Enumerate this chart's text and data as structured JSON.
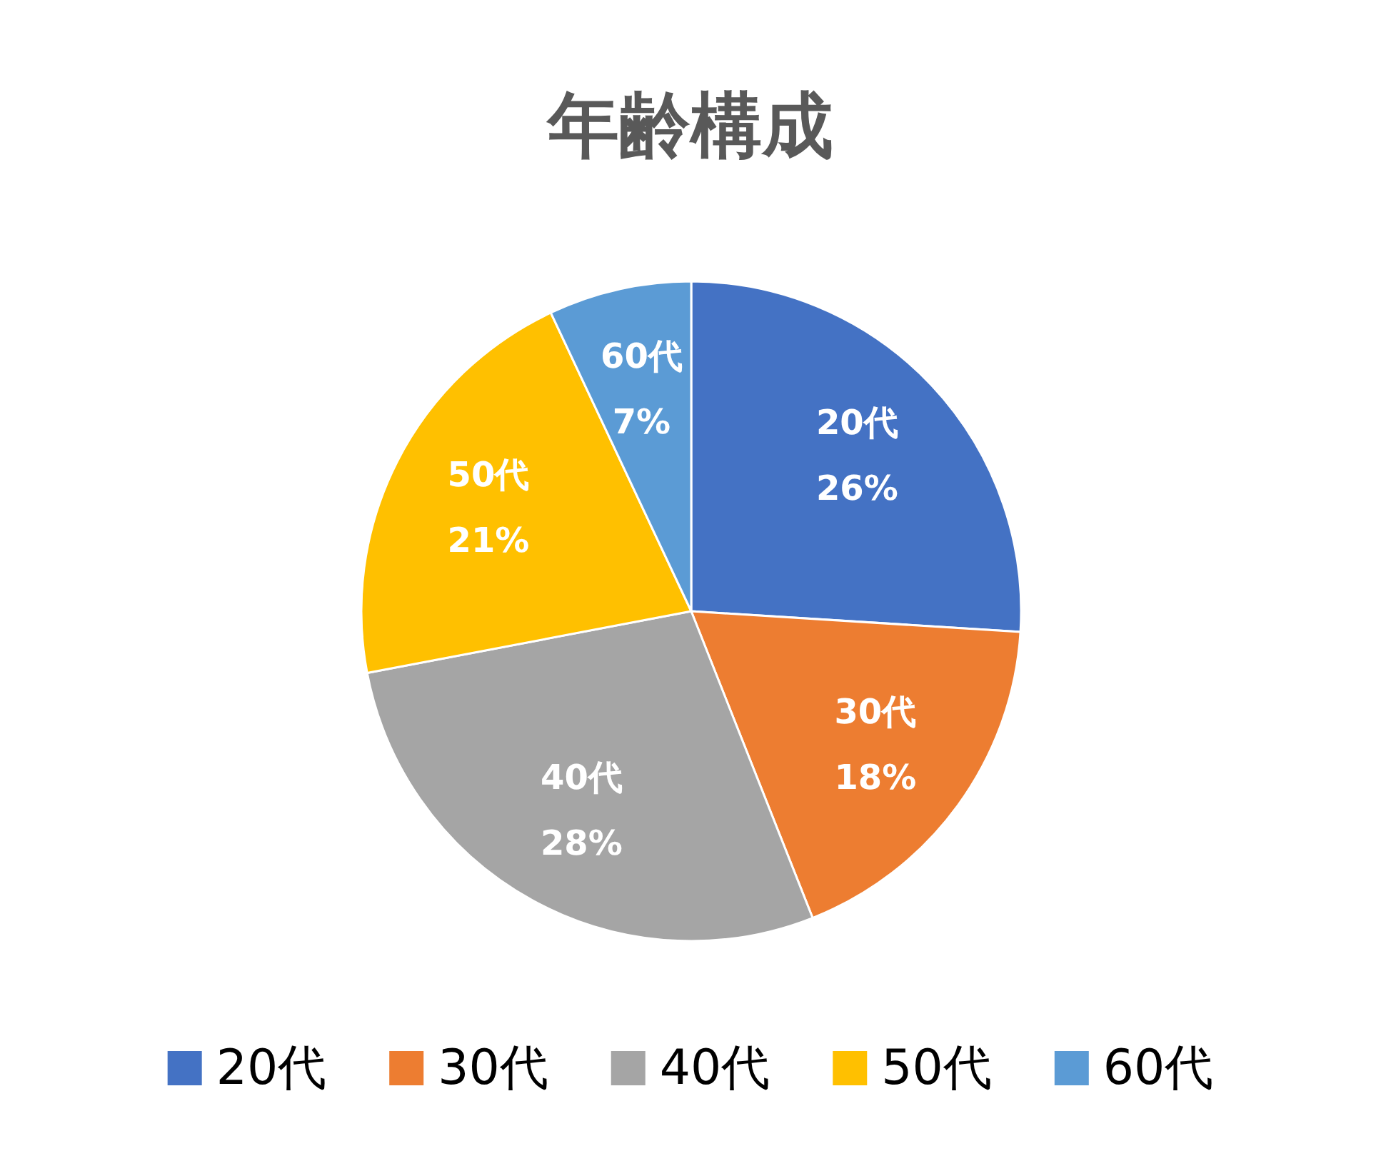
{
  "chart_data": {
    "type": "pie",
    "title": "年齢構成",
    "categories": [
      "20代",
      "30代",
      "40代",
      "50代",
      "60代"
    ],
    "values": [
      26,
      18,
      28,
      21,
      7
    ],
    "colors": [
      "#4472c4",
      "#ed7d31",
      "#a5a5a5",
      "#ffc000",
      "#5b9bd5"
    ],
    "value_labels": [
      "26%",
      "18%",
      "28%",
      "21%",
      "7%"
    ],
    "legend": "bottom"
  }
}
